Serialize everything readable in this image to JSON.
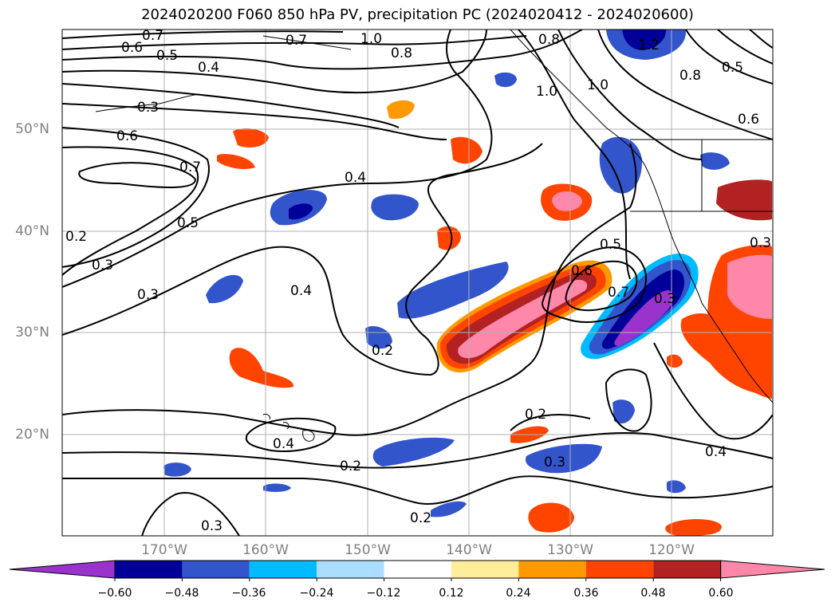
{
  "title": "2024020200 F060 850 hPa PV, precipitation PC (2024020412 - 2024020600)",
  "lon_ticks": [
    "170°W",
    "160°W",
    "150°W",
    "140°W",
    "130°W",
    "120°W"
  ],
  "lat_ticks": [
    "50°N",
    "40°N",
    "30°N",
    "20°N"
  ],
  "colorbar": {
    "ticks": [
      "−0.60",
      "−0.48",
      "−0.36",
      "−0.24",
      "−0.12",
      "0.12",
      "0.24",
      "0.36",
      "0.48",
      "0.60"
    ],
    "colors": [
      "#9933cc",
      "#000099",
      "#3355cc",
      "#00bbff",
      "#aaddff",
      "#ffffff",
      "#ffee99",
      "#ff9900",
      "#ff4400",
      "#b22222",
      "#ff88aa"
    ]
  },
  "contour_labels": [
    "0.7",
    "0.6",
    "0.5",
    "0.4",
    "0.3",
    "0.6",
    "0.7",
    "0.5",
    "0.2",
    "0.3",
    "0.3",
    "0.4",
    "0.4",
    "0.2",
    "0.2",
    "0.4",
    "0.2",
    "0.3",
    "0.2",
    "0.3",
    "0.8",
    "1.0",
    "0.7",
    "0.8",
    "1.0",
    "1.2",
    "0.8",
    "0.5",
    "0.6",
    "0.5",
    "0.7",
    "0.6",
    "0.3",
    "0.3",
    "0.4",
    "1.0"
  ],
  "colors": {
    "contour": "#000000",
    "grid": "#b0b0b0",
    "land": "#000000"
  }
}
